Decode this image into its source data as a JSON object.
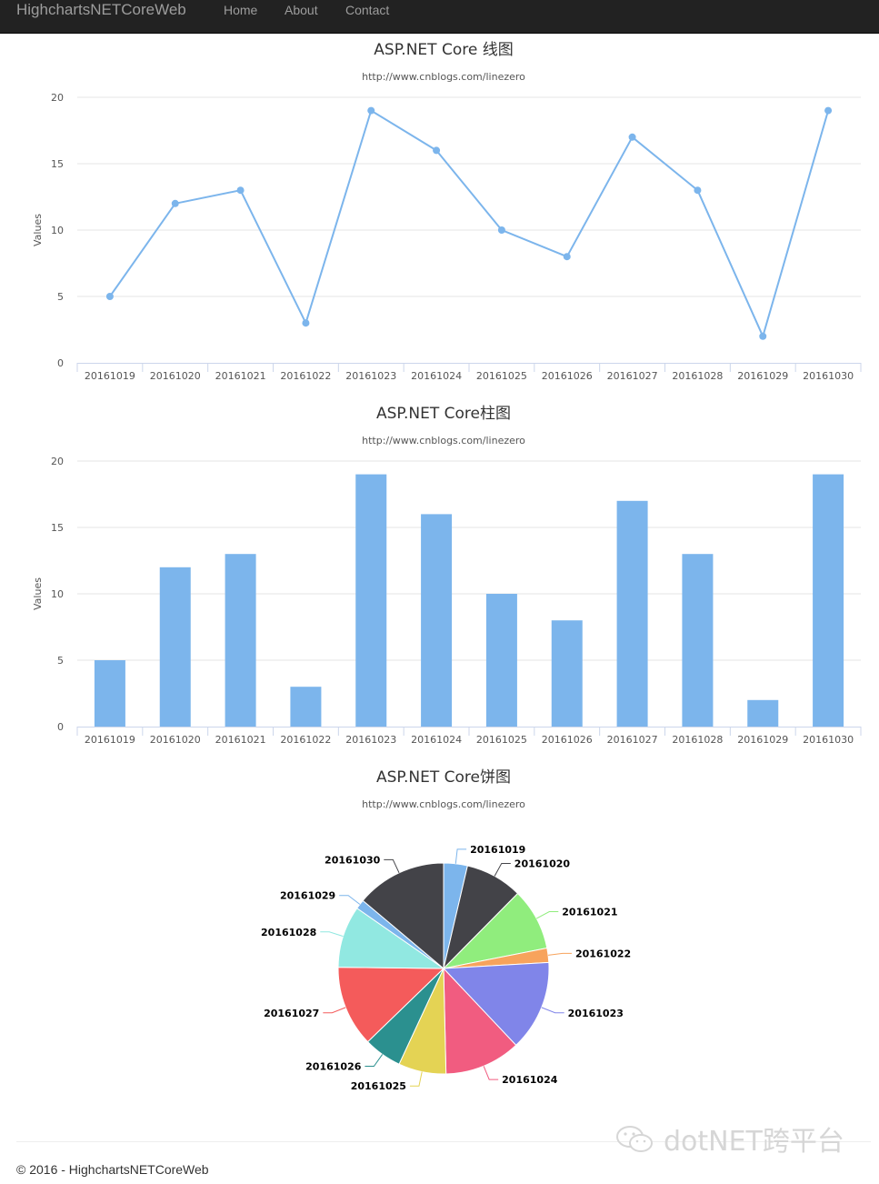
{
  "navbar": {
    "brand": "HighchartsNETCoreWeb",
    "links": [
      "Home",
      "About",
      "Contact"
    ]
  },
  "footer": {
    "text": "© 2016 - HighchartsNETCoreWeb"
  },
  "watermark": {
    "text": "dotNET跨平台"
  },
  "colors": {
    "navbar_bg": "#222222",
    "series": "#7cb5ec",
    "pie": [
      "#7cb5ec",
      "#434348",
      "#90ed7d",
      "#f7a35c",
      "#8085e9",
      "#f15c80",
      "#e4d354",
      "#2b908f",
      "#f45b5b",
      "#91e8e1",
      "#7cb5ec",
      "#434348"
    ]
  },
  "chart_data": [
    {
      "type": "line",
      "title": "ASP.NET Core 线图",
      "subtitle": "http://www.cnblogs.com/linezero",
      "ylabel": "Values",
      "ylim": [
        0,
        20
      ],
      "yticks": [
        0,
        5,
        10,
        15,
        20
      ],
      "categories": [
        "20161019",
        "20161020",
        "20161021",
        "20161022",
        "20161023",
        "20161024",
        "20161025",
        "20161026",
        "20161027",
        "20161028",
        "20161029",
        "20161030"
      ],
      "values": [
        5,
        12,
        13,
        3,
        19,
        16,
        10,
        8,
        17,
        13,
        2,
        19
      ],
      "grid": true,
      "legend": "none"
    },
    {
      "type": "bar",
      "title": "ASP.NET Core柱图",
      "subtitle": "http://www.cnblogs.com/linezero",
      "ylabel": "Values",
      "ylim": [
        0,
        20
      ],
      "yticks": [
        0,
        5,
        10,
        15,
        20
      ],
      "categories": [
        "20161019",
        "20161020",
        "20161021",
        "20161022",
        "20161023",
        "20161024",
        "20161025",
        "20161026",
        "20161027",
        "20161028",
        "20161029",
        "20161030"
      ],
      "values": [
        5,
        12,
        13,
        3,
        19,
        16,
        10,
        8,
        17,
        13,
        2,
        19
      ],
      "grid": true,
      "legend": "none"
    },
    {
      "type": "pie",
      "title": "ASP.NET Core饼图",
      "subtitle": "http://www.cnblogs.com/linezero",
      "categories": [
        "20161019",
        "20161020",
        "20161021",
        "20161022",
        "20161023",
        "20161024",
        "20161025",
        "20161026",
        "20161027",
        "20161028",
        "20161029",
        "20161030"
      ],
      "values": [
        5,
        12,
        13,
        3,
        19,
        16,
        10,
        8,
        17,
        13,
        2,
        19
      ],
      "legend": "none"
    }
  ]
}
